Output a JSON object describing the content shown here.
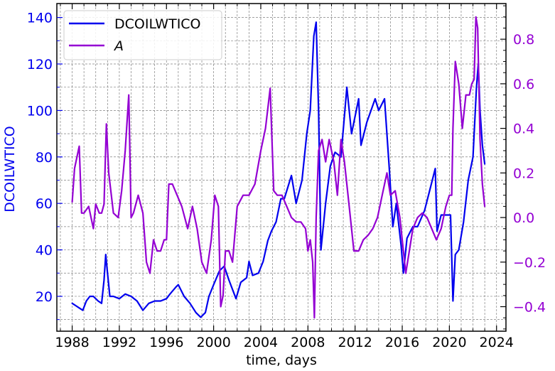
{
  "chart_data": {
    "type": "line",
    "xlabel": "time, days",
    "ylabel_left": "DCOILWTICO",
    "xlim": [
      1986.7,
      2024.8
    ],
    "ylim_left": [
      5,
      146
    ],
    "ylim_right": [
      -0.51,
      0.96
    ],
    "x_ticks": [
      1988,
      1992,
      1996,
      2000,
      2004,
      2008,
      2012,
      2016,
      2020,
      2024
    ],
    "x_tick_labels": [
      "1988",
      "1992",
      "1996",
      "2000",
      "2004",
      "2008",
      "2012",
      "2016",
      "2020",
      "2024"
    ],
    "y_left_ticks": [
      20,
      40,
      60,
      80,
      100,
      120,
      140
    ],
    "y_left_tick_labels": [
      "20",
      "40",
      "60",
      "80",
      "100",
      "120",
      "140"
    ],
    "y_right_ticks": [
      -0.4,
      -0.2,
      0.0,
      0.2,
      0.4,
      0.6,
      0.8
    ],
    "y_right_tick_labels": [
      "−0.4",
      "−0.2",
      "0.0",
      "0.2",
      "0.4",
      "0.6",
      "0.8"
    ],
    "grid": true,
    "legend_position": "top-left",
    "series": [
      {
        "name": "DCOILWTICO",
        "axis": "left",
        "color": "#0000ee",
        "x": [
          1988.0,
          1988.3,
          1988.6,
          1988.9,
          1989.2,
          1989.5,
          1989.8,
          1990.2,
          1990.5,
          1990.7,
          1990.85,
          1991.0,
          1991.2,
          1991.5,
          1992.0,
          1992.5,
          1993.0,
          1993.5,
          1994.0,
          1994.5,
          1995.0,
          1995.5,
          1996.0,
          1996.3,
          1996.8,
          1997.0,
          1997.5,
          1998.0,
          1998.5,
          1998.9,
          1999.3,
          1999.6,
          2000.0,
          2000.5,
          2000.9,
          2001.3,
          2001.9,
          2002.3,
          2002.8,
          2003.0,
          2003.3,
          2003.8,
          2004.2,
          2004.6,
          2004.9,
          2005.3,
          2005.7,
          2006.0,
          2006.6,
          2007.0,
          2007.5,
          2007.9,
          2008.2,
          2008.5,
          2008.7,
          2008.9,
          2009.1,
          2009.5,
          2009.9,
          2010.3,
          2010.8,
          2011.3,
          2011.7,
          2012.3,
          2012.5,
          2013.0,
          2013.7,
          2014.0,
          2014.5,
          2014.9,
          2015.2,
          2015.5,
          2015.9,
          2016.1,
          2016.4,
          2016.9,
          2017.3,
          2017.9,
          2018.3,
          2018.8,
          2018.95,
          2019.3,
          2019.8,
          2020.1,
          2020.3,
          2020.5,
          2020.8,
          2021.2,
          2021.6,
          2022.0,
          2022.3,
          2022.45,
          2022.6,
          2022.8,
          2023.0
        ],
        "values": [
          17,
          16,
          15,
          14,
          18,
          20,
          20,
          18,
          17,
          27,
          38,
          30,
          20,
          20,
          19,
          21,
          20,
          18,
          14,
          17,
          18,
          18,
          19,
          21,
          24,
          25,
          20,
          17,
          13,
          11,
          13,
          20,
          25,
          31,
          33,
          27,
          19,
          26,
          28,
          35,
          29,
          30,
          35,
          44,
          48,
          52,
          62,
          62,
          72,
          60,
          70,
          90,
          100,
          132,
          138,
          100,
          40,
          60,
          76,
          82,
          80,
          110,
          90,
          105,
          85,
          95,
          105,
          100,
          105,
          75,
          50,
          60,
          42,
          30,
          45,
          50,
          50,
          57,
          65,
          75,
          48,
          55,
          55,
          55,
          18,
          38,
          40,
          52,
          70,
          80,
          110,
          120,
          100,
          85,
          77
        ]
      },
      {
        "name": "A",
        "axis": "right",
        "color": "#9400d3",
        "x": [
          1988.0,
          1988.2,
          1988.4,
          1988.6,
          1988.8,
          1989.0,
          1989.4,
          1989.8,
          1990.0,
          1990.3,
          1990.5,
          1990.7,
          1990.9,
          1991.1,
          1991.5,
          1991.9,
          1992.2,
          1992.5,
          1992.8,
          1993.0,
          1993.2,
          1993.6,
          1994.0,
          1994.3,
          1994.6,
          1994.9,
          1995.2,
          1995.5,
          1995.8,
          1996.0,
          1996.2,
          1996.5,
          1996.9,
          1997.3,
          1997.8,
          1998.2,
          1998.6,
          1999.0,
          1999.4,
          1999.8,
          2000.1,
          2000.4,
          2000.6,
          2000.8,
          2001.0,
          2001.3,
          2001.6,
          2002.0,
          2002.5,
          2003.0,
          2003.5,
          2004.0,
          2004.4,
          2004.8,
          2005.1,
          2005.4,
          2005.8,
          2006.2,
          2006.6,
          2007.0,
          2007.4,
          2007.8,
          2008.0,
          2008.2,
          2008.4,
          2008.55,
          2008.7,
          2008.9,
          2009.2,
          2009.5,
          2009.8,
          2010.2,
          2010.5,
          2010.8,
          2011.1,
          2011.5,
          2011.9,
          2012.3,
          2012.7,
          2013.1,
          2013.5,
          2013.9,
          2014.3,
          2014.7,
          2015.0,
          2015.4,
          2015.8,
          2016.0,
          2016.3,
          2016.6,
          2016.9,
          2017.3,
          2017.7,
          2018.1,
          2018.5,
          2018.9,
          2019.3,
          2019.7,
          2020.0,
          2020.2,
          2020.3,
          2020.5,
          2020.8,
          2021.1,
          2021.4,
          2021.7,
          2021.9,
          2022.1,
          2022.25,
          2022.4,
          2022.6,
          2022.8,
          2023.0
        ],
        "values": [
          0.07,
          0.22,
          0.27,
          0.32,
          0.02,
          0.02,
          0.05,
          -0.05,
          0.06,
          0.02,
          0.02,
          0.06,
          0.42,
          0.2,
          0.02,
          0.0,
          0.12,
          0.3,
          0.55,
          0.0,
          0.02,
          0.1,
          0.02,
          -0.2,
          -0.25,
          -0.1,
          -0.15,
          -0.15,
          -0.1,
          -0.1,
          0.15,
          0.15,
          0.1,
          0.05,
          -0.05,
          0.05,
          -0.05,
          -0.2,
          -0.25,
          -0.1,
          0.1,
          0.05,
          -0.4,
          -0.35,
          -0.15,
          -0.15,
          -0.2,
          0.05,
          0.1,
          0.1,
          0.15,
          0.3,
          0.4,
          0.58,
          0.12,
          0.1,
          0.1,
          0.05,
          0.0,
          -0.02,
          -0.02,
          -0.05,
          -0.15,
          -0.1,
          -0.2,
          -0.45,
          0.0,
          0.3,
          0.35,
          0.25,
          0.35,
          0.25,
          0.1,
          0.35,
          0.25,
          0.05,
          -0.15,
          -0.15,
          -0.1,
          -0.08,
          -0.05,
          0.0,
          0.1,
          0.2,
          0.1,
          0.12,
          0.0,
          -0.1,
          -0.25,
          -0.15,
          -0.05,
          0.0,
          0.02,
          0.0,
          -0.05,
          -0.1,
          -0.05,
          0.05,
          0.1,
          0.1,
          0.4,
          0.7,
          0.6,
          0.4,
          0.55,
          0.55,
          0.6,
          0.62,
          0.9,
          0.85,
          0.35,
          0.15,
          0.05
        ]
      }
    ]
  }
}
